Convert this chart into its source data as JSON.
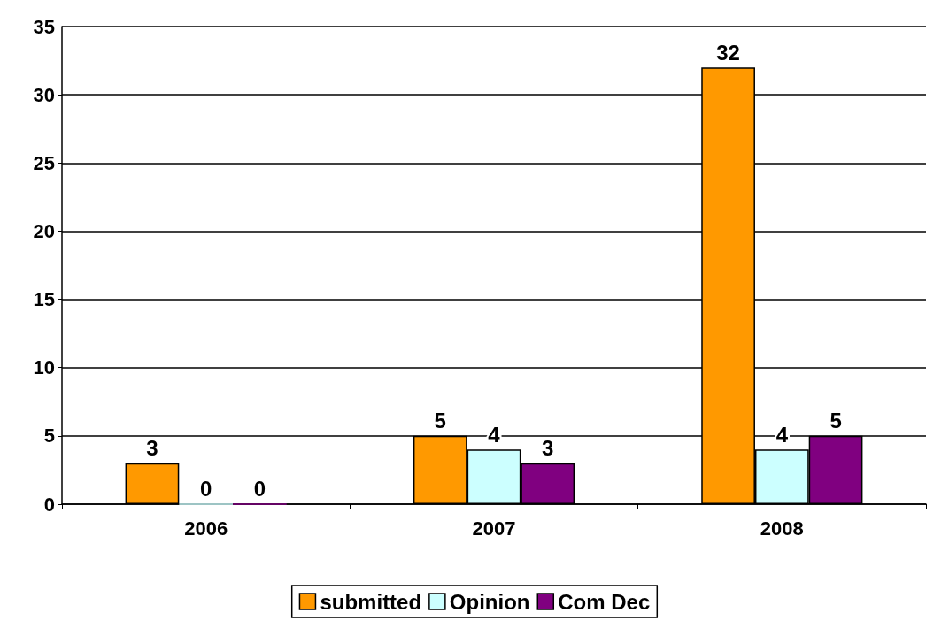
{
  "chart_data": {
    "type": "bar",
    "categories": [
      "2006",
      "2007",
      "2008"
    ],
    "series": [
      {
        "name": "submitted",
        "color": "#ff9900",
        "values": [
          3,
          5,
          32
        ]
      },
      {
        "name": "Opinion",
        "color": "#ccffff",
        "values": [
          0,
          4,
          4
        ]
      },
      {
        "name": "Com Dec",
        "color": "#800080",
        "values": [
          0,
          3,
          5
        ]
      }
    ],
    "ylim": [
      0,
      35
    ],
    "yticks": [
      0,
      5,
      10,
      15,
      20,
      25,
      30,
      35
    ],
    "grid": "y",
    "legend": "bottom",
    "data_labels": true
  }
}
